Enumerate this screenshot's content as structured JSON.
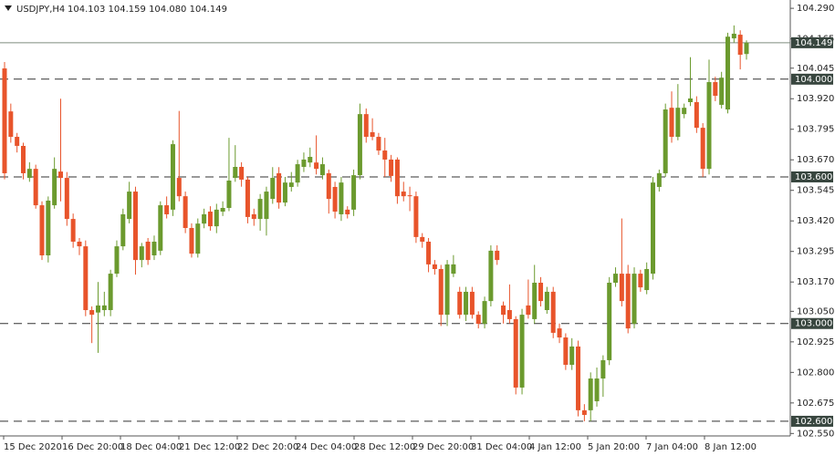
{
  "chart_data": {
    "type": "candlestick",
    "title": "USDJPY,H4",
    "info": "104.103 104.159 104.080 104.149",
    "bull_color": "#6b9a2e",
    "bear_color": "#e8542b",
    "ylim": [
      102.54,
      104.324
    ],
    "yticks": [
      {
        "value": 104.29,
        "label": "104.290"
      },
      104.165,
      {
        "value": 104.045,
        "label": "104.045"
      },
      {
        "value": 103.92,
        "label": "103.920"
      },
      103.795,
      {
        "value": 103.67,
        "label": "103.670"
      },
      103.545,
      {
        "value": 103.42,
        "label": "103.420"
      },
      103.295,
      {
        "value": 103.17,
        "label": "103.170"
      },
      {
        "value": 103.05,
        "label": "103.050"
      },
      102.925,
      {
        "value": 102.8,
        "label": "102.800"
      },
      102.675,
      {
        "value": 102.55,
        "label": "102.550"
      }
    ],
    "levels": [
      {
        "value": 104,
        "label": "104.000"
      },
      {
        "value": 103.6,
        "label": "103.600"
      },
      {
        "value": 103,
        "label": "103.000"
      },
      {
        "value": 102.6,
        "label": "102.600"
      }
    ],
    "current_price": 104.149,
    "x_labels": [
      "15 Dec 2020",
      "16 Dec 20:00",
      "18 Dec 04:00",
      "21 Dec 12:00",
      "22 Dec 20:00",
      "24 Dec 04:00",
      "28 Dec 12:00",
      "29 Dec 20:00",
      "31 Dec 04:00",
      "4 Jan 12:00",
      "5 Jan 20:00",
      "7 Jan 04:00",
      "8 Jan 12:00"
    ],
    "ohlc": [
      [
        104.044,
        104.07,
        103.59,
        103.615
      ],
      [
        103.868,
        103.9,
        103.74,
        103.764
      ],
      [
        103.764,
        103.78,
        103.7,
        103.727
      ],
      [
        103.727,
        103.74,
        103.59,
        103.615
      ],
      [
        103.596,
        103.66,
        103.58,
        103.633
      ],
      [
        103.633,
        103.65,
        103.47,
        103.484
      ],
      [
        103.484,
        103.5,
        103.26,
        103.279
      ],
      [
        103.279,
        103.52,
        103.25,
        103.503
      ],
      [
        103.484,
        103.68,
        103.47,
        103.633
      ],
      [
        103.622,
        103.92,
        103.5,
        103.596
      ],
      [
        103.596,
        103.62,
        103.4,
        103.428
      ],
      [
        103.428,
        103.45,
        103.31,
        103.335
      ],
      [
        103.335,
        103.35,
        103.28,
        103.316
      ],
      [
        103.316,
        103.34,
        103.03,
        103.055
      ],
      [
        103.055,
        103.07,
        102.92,
        103.036
      ],
      [
        103.045,
        103.17,
        102.88,
        103.074
      ],
      [
        103.055,
        103.13,
        103.03,
        103.074
      ],
      [
        103.055,
        103.22,
        103.03,
        103.204
      ],
      [
        103.204,
        103.34,
        103.19,
        103.316
      ],
      [
        103.316,
        103.47,
        103.3,
        103.447
      ],
      [
        103.428,
        103.58,
        103.41,
        103.54
      ],
      [
        103.54,
        103.56,
        103.2,
        103.26
      ],
      [
        103.26,
        103.33,
        103.23,
        103.316
      ],
      [
        103.335,
        103.35,
        103.24,
        103.26
      ],
      [
        103.279,
        103.36,
        103.26,
        103.335
      ],
      [
        103.298,
        103.5,
        103.28,
        103.484
      ],
      [
        103.484,
        103.52,
        103.43,
        103.447
      ],
      [
        103.466,
        103.75,
        103.44,
        103.734
      ],
      [
        103.596,
        103.87,
        103.5,
        103.521
      ],
      [
        103.521,
        103.54,
        103.37,
        103.391
      ],
      [
        103.391,
        103.41,
        103.27,
        103.286
      ],
      [
        103.286,
        103.43,
        103.27,
        103.409
      ],
      [
        103.409,
        103.47,
        103.39,
        103.447
      ],
      [
        103.458,
        103.48,
        103.38,
        103.398
      ],
      [
        103.398,
        103.49,
        103.37,
        103.466
      ],
      [
        103.458,
        103.5,
        103.44,
        103.473
      ],
      [
        103.473,
        103.76,
        103.46,
        103.585
      ],
      [
        103.596,
        103.73,
        103.58,
        103.641
      ],
      [
        103.641,
        103.66,
        103.56,
        103.589
      ],
      [
        103.589,
        103.6,
        103.41,
        103.436
      ],
      [
        103.447,
        103.47,
        103.4,
        103.428
      ],
      [
        103.428,
        103.53,
        103.38,
        103.51
      ],
      [
        103.428,
        103.56,
        103.36,
        103.54
      ],
      [
        103.51,
        103.64,
        103.49,
        103.596
      ],
      [
        103.615,
        103.64,
        103.47,
        103.495
      ],
      [
        103.495,
        103.6,
        103.48,
        103.577
      ],
      [
        103.559,
        103.62,
        103.54,
        103.577
      ],
      [
        103.577,
        103.67,
        103.56,
        103.652
      ],
      [
        103.641,
        103.7,
        103.62,
        103.671
      ],
      [
        103.659,
        103.72,
        103.64,
        103.682
      ],
      [
        103.659,
        103.77,
        103.61,
        103.633
      ],
      [
        103.607,
        103.68,
        103.59,
        103.652
      ],
      [
        103.615,
        103.63,
        103.45,
        103.51
      ],
      [
        103.559,
        103.58,
        103.43,
        103.458
      ],
      [
        103.447,
        103.6,
        103.42,
        103.577
      ],
      [
        103.466,
        103.48,
        103.43,
        103.447
      ],
      [
        103.466,
        103.63,
        103.44,
        103.607
      ],
      [
        103.607,
        103.9,
        103.59,
        103.857
      ],
      [
        103.857,
        103.88,
        103.74,
        103.764
      ],
      [
        103.783,
        103.84,
        103.75,
        103.764
      ],
      [
        103.764,
        103.78,
        103.69,
        103.708
      ],
      [
        103.708,
        103.76,
        103.6,
        103.671
      ],
      [
        103.671,
        103.69,
        103.58,
        103.604
      ],
      [
        103.671,
        103.68,
        103.49,
        103.521
      ],
      [
        103.54,
        103.58,
        103.5,
        103.521
      ],
      [
        103.525,
        103.56,
        103.46,
        103.521
      ],
      [
        103.521,
        103.54,
        103.33,
        103.354
      ],
      [
        103.354,
        103.37,
        103.31,
        103.335
      ],
      [
        103.335,
        103.35,
        103.21,
        103.242
      ],
      [
        103.242,
        103.26,
        103.2,
        103.223
      ],
      [
        103.223,
        103.24,
        102.99,
        103.036
      ],
      [
        103.036,
        103.26,
        102.99,
        103.242
      ],
      [
        103.204,
        103.28,
        103.19,
        103.242
      ],
      [
        103.13,
        103.15,
        103.02,
        103.036
      ],
      [
        103.036,
        103.15,
        103.01,
        103.13
      ],
      [
        103.13,
        103.15,
        103.02,
        103.036
      ],
      [
        103.036,
        103.05,
        102.98,
        102.999
      ],
      [
        102.999,
        103.11,
        102.98,
        103.092
      ],
      [
        103.092,
        103.32,
        103.07,
        103.298
      ],
      [
        103.298,
        103.32,
        103.24,
        103.26
      ],
      [
        103.074,
        103.09,
        103.0,
        103.036
      ],
      [
        103.055,
        103.16,
        103.0,
        103.018
      ],
      [
        103.018,
        103.03,
        102.71,
        102.738
      ],
      [
        102.738,
        103.06,
        102.71,
        103.036
      ],
      [
        103.074,
        103.18,
        103.02,
        103.036
      ],
      [
        103.018,
        103.24,
        103.0,
        103.167
      ],
      [
        103.167,
        103.19,
        103.07,
        103.092
      ],
      [
        103.055,
        103.15,
        103.04,
        103.13
      ],
      [
        103.13,
        103.15,
        102.94,
        102.962
      ],
      [
        102.98,
        103.0,
        102.92,
        102.943
      ],
      [
        102.943,
        102.96,
        102.81,
        102.831
      ],
      [
        102.831,
        102.94,
        102.81,
        102.906
      ],
      [
        102.906,
        102.93,
        102.62,
        102.645
      ],
      [
        102.645,
        102.67,
        102.6,
        102.626
      ],
      [
        102.645,
        102.8,
        102.6,
        102.775
      ],
      [
        102.682,
        102.82,
        102.66,
        102.775
      ],
      [
        102.775,
        102.87,
        102.7,
        102.85
      ],
      [
        102.85,
        103.19,
        102.83,
        103.167
      ],
      [
        103.167,
        103.23,
        103.15,
        103.204
      ],
      [
        103.204,
        103.43,
        103.07,
        103.092
      ],
      [
        103.204,
        103.24,
        102.96,
        102.98
      ],
      [
        102.999,
        103.23,
        102.98,
        103.204
      ],
      [
        103.204,
        103.22,
        103.13,
        103.148
      ],
      [
        103.137,
        103.25,
        103.12,
        103.223
      ],
      [
        103.204,
        103.6,
        103.18,
        103.577
      ],
      [
        103.559,
        103.63,
        103.54,
        103.615
      ],
      [
        103.615,
        103.9,
        103.6,
        103.876
      ],
      [
        103.883,
        103.95,
        103.74,
        103.764
      ],
      [
        103.764,
        103.98,
        103.75,
        103.883
      ],
      [
        103.857,
        103.9,
        103.84,
        103.883
      ],
      [
        103.906,
        104.09,
        103.89,
        103.921
      ],
      [
        103.906,
        103.93,
        103.78,
        103.801
      ],
      [
        103.801,
        103.82,
        103.6,
        103.633
      ],
      [
        103.633,
        104.08,
        103.61,
        103.988
      ],
      [
        103.988,
        104.01,
        103.91,
        103.932
      ],
      [
        103.895,
        104.03,
        103.88,
        104.006
      ],
      [
        103.876,
        104.19,
        103.86,
        104.174
      ],
      [
        104.167,
        104.22,
        104.15,
        104.186
      ],
      [
        104.182,
        104.2,
        104.04,
        104.1
      ],
      [
        104.103,
        104.159,
        104.08,
        104.149
      ]
    ]
  }
}
